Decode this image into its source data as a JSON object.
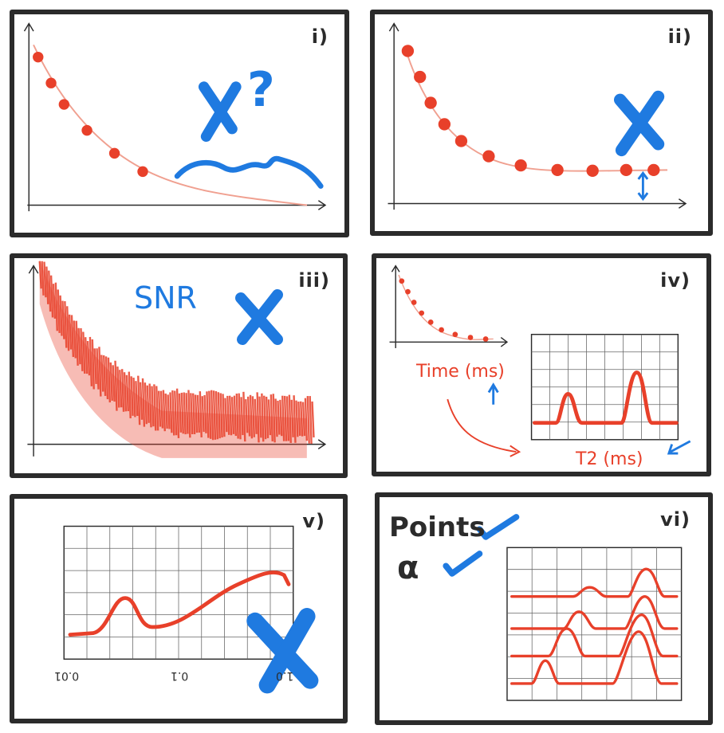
{
  "panels": {
    "i": {
      "label": "i)",
      "annotation": "X?"
    },
    "ii": {
      "label": "ii)"
    },
    "iii": {
      "label": "iii)",
      "annotation": "SNR"
    },
    "iv": {
      "label": "iv)",
      "time_label": "Time (ms)",
      "t2_label": "T2 (ms)"
    },
    "v": {
      "label": "v)",
      "ticks": [
        "0.01",
        "0.1",
        "1.0"
      ]
    },
    "vi": {
      "label": "vi)",
      "points_label": "Points",
      "alpha_label": "α"
    }
  },
  "colors": {
    "red": "#e8402a",
    "blue": "#1f7ae0",
    "ink": "#2b2b2b",
    "grid": "#555555"
  }
}
